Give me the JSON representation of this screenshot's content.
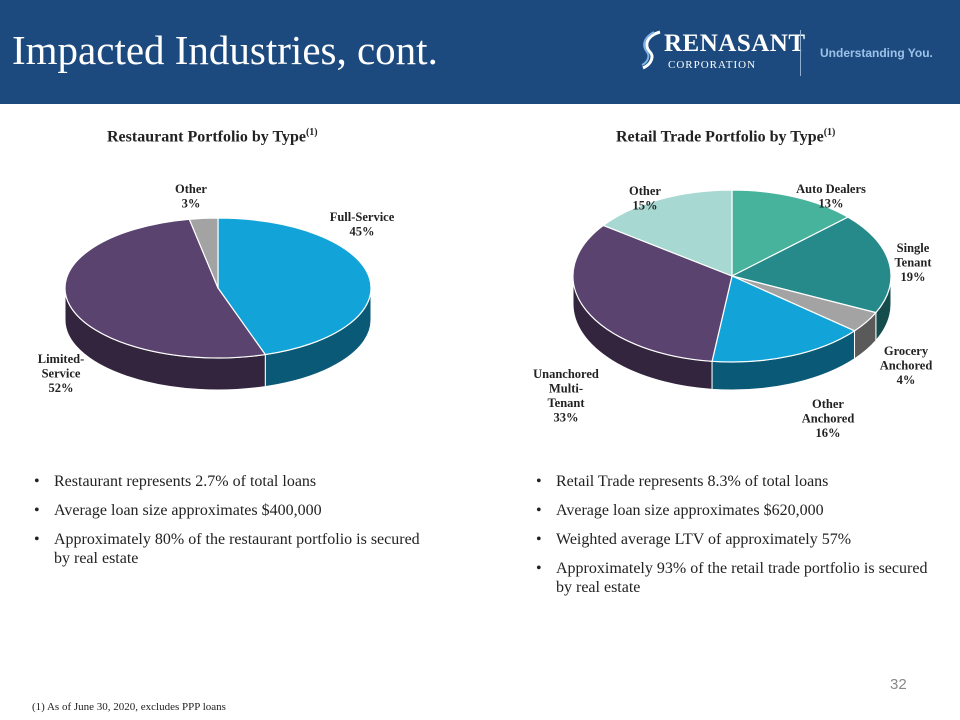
{
  "header": {
    "title": "Impacted Industries, cont.",
    "logo": {
      "name": "RENASANT",
      "sub": "CORPORATION"
    },
    "tagline": "Understanding You."
  },
  "colors": {
    "header_bg": "#1d4a7e",
    "full_service": "#12a3d8",
    "limited_service": "#5a436e",
    "other": "#a3a3a3",
    "auto_dealers": "#48b39d",
    "single_tenant": "#278a8a",
    "grocery_anchored": "#a3a3a3",
    "other_anchored": "#12a3d8",
    "unanchored": "#5a436e",
    "retail_other": "#a8d8d2"
  },
  "chart_data": [
    {
      "type": "pie",
      "title": "Restaurant Portfolio by Type",
      "title_sup": "(1)",
      "slices": [
        {
          "label_lines": [
            "Full-Service",
            "45%"
          ],
          "value": 45
        },
        {
          "label_lines": [
            "Limited-",
            "Service",
            "52%"
          ],
          "value": 52
        },
        {
          "label_lines": [
            "Other",
            "3%"
          ],
          "value": 3
        }
      ]
    },
    {
      "type": "pie",
      "title": "Retail Trade Portfolio by Type",
      "title_sup": "(1)",
      "slices": [
        {
          "label_lines": [
            "Auto Dealers",
            "13%"
          ],
          "value": 13
        },
        {
          "label_lines": [
            "Single",
            "Tenant",
            "19%"
          ],
          "value": 19
        },
        {
          "label_lines": [
            "Grocery",
            "Anchored",
            "4%"
          ],
          "value": 4
        },
        {
          "label_lines": [
            "Other",
            "Anchored",
            "16%"
          ],
          "value": 16
        },
        {
          "label_lines": [
            "Unanchored",
            "Multi-",
            "Tenant",
            "33%"
          ],
          "value": 33
        },
        {
          "label_lines": [
            "Other",
            "15%"
          ],
          "value": 15
        }
      ]
    }
  ],
  "bullets_left": [
    "Restaurant represents 2.7% of total loans",
    "Average loan size approximates $400,000",
    "Approximately 80% of the restaurant portfolio is secured by real estate"
  ],
  "bullets_right": [
    "Retail Trade represents 8.3% of total loans",
    "Average loan size approximates $620,000",
    "Weighted average LTV of approximately 57%",
    "Approximately 93% of the retail trade portfolio is secured by real estate"
  ],
  "page_number": "32",
  "footnote": "(1)  As of June 30, 2020, excludes PPP loans"
}
